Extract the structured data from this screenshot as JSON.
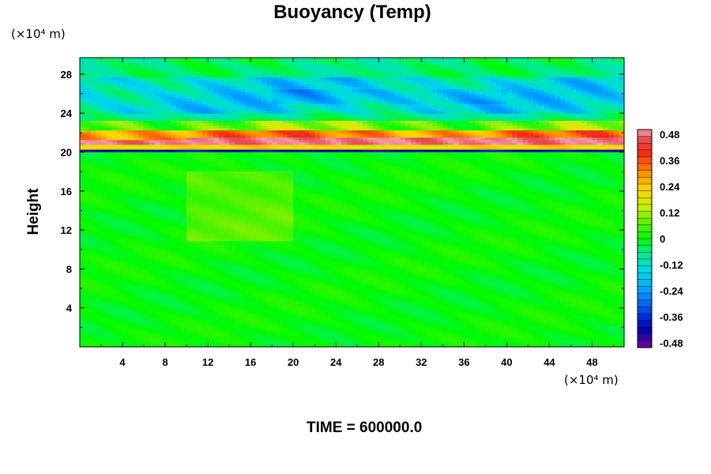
{
  "chart_data": {
    "type": "heatmap",
    "title": "Buoyancy (Temp)",
    "ylabel": "Height",
    "x_unit": "(×10⁴ m)",
    "y_unit": "(×10⁴ m)",
    "footer": "TIME = 600000.0",
    "xlim": [
      0,
      51
    ],
    "ylim": [
      0,
      29.7
    ],
    "xticks": [
      4,
      8,
      12,
      16,
      20,
      24,
      28,
      32,
      36,
      40,
      44,
      48
    ],
    "yticks": [
      4,
      8,
      12,
      16,
      20,
      24,
      28
    ],
    "colorbar": {
      "range": [
        -0.48,
        0.48
      ],
      "labels": [
        "0.48",
        "0.36",
        "0.24",
        "0.12",
        "0",
        "-0.12",
        "-0.24",
        "-0.36",
        "-0.48"
      ]
    },
    "field_description": {
      "below_20": 0.0,
      "layer_20": -0.4,
      "layer_21": 0.48,
      "layer_22": 0.3,
      "upper_24_28": -0.14,
      "top_28": -0.05
    }
  }
}
